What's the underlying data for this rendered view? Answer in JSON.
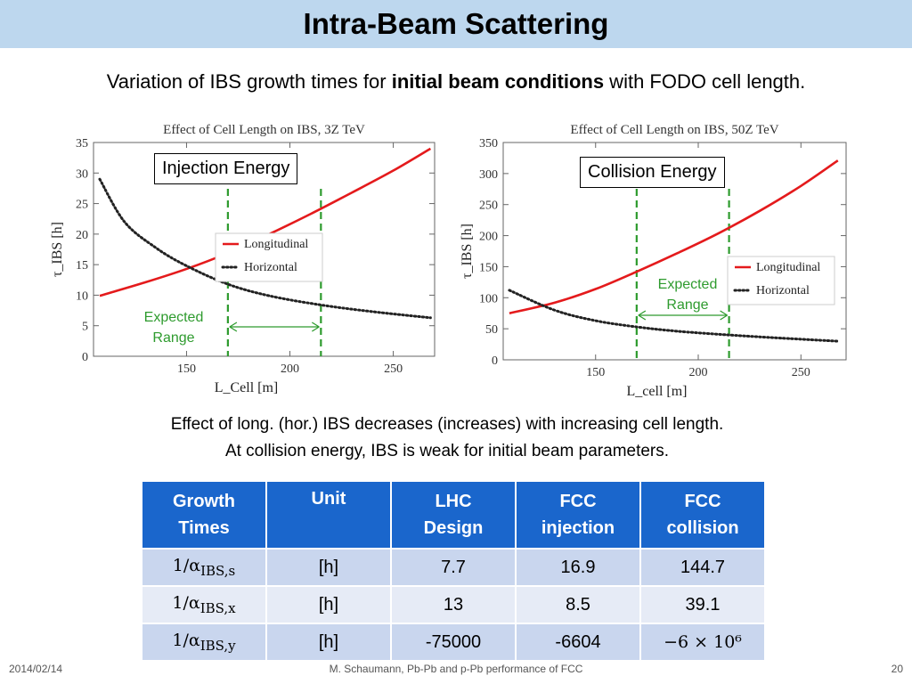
{
  "slide": {
    "title": "Intra-Beam Scattering",
    "subtitle_pre": "Variation of IBS growth times for ",
    "subtitle_bold": "initial beam conditions",
    "subtitle_post": " with FODO cell length.",
    "caption_line1": "Effect of long. (hor.) IBS decreases (increases) with increasing cell length.",
    "caption_line2": "At collision energy, IBS is weak for initial beam parameters."
  },
  "chart_data": [
    {
      "type": "line",
      "title": "Effect of Cell Length on IBS, 3Z TeV",
      "xlabel": "L_Cell [m]",
      "ylabel": "τ_IBS [h]",
      "xlim": [
        105,
        270
      ],
      "ylim": [
        0,
        35
      ],
      "xticks": [
        150,
        200,
        250
      ],
      "yticks": [
        0,
        5,
        10,
        15,
        20,
        25,
        30,
        35
      ],
      "callout": "Injection Energy",
      "expected_range_label": [
        "Expected",
        "Range"
      ],
      "expected_range": [
        170,
        215
      ],
      "legend_position": "right",
      "series": [
        {
          "name": "Longitudinal",
          "color": "#e41a1c",
          "style": "solid",
          "x": [
            108,
            130,
            150,
            170,
            190,
            210,
            230,
            250,
            268
          ],
          "y": [
            9.9,
            12.1,
            14.3,
            16.9,
            20.0,
            23.3,
            26.8,
            30.4,
            34.0
          ]
        },
        {
          "name": "Horizontal",
          "color": "#222222",
          "style": "dotted",
          "x": [
            108,
            120,
            135,
            150,
            170,
            190,
            215,
            240,
            268
          ],
          "y": [
            29.0,
            22.0,
            17.8,
            14.8,
            11.8,
            9.9,
            8.4,
            7.3,
            6.3
          ]
        }
      ]
    },
    {
      "type": "line",
      "title": "Effect of Cell Length on IBS, 50Z TeV",
      "xlabel": "L_cell [m]",
      "ylabel": "τ_IBS [h]",
      "xlim": [
        105,
        272
      ],
      "ylim": [
        0,
        350
      ],
      "xticks": [
        150,
        200,
        250
      ],
      "yticks": [
        0,
        50,
        100,
        150,
        200,
        250,
        300,
        350
      ],
      "callout": "Collision Energy",
      "expected_range_label": [
        "Expected",
        "Range"
      ],
      "expected_range": [
        170,
        215
      ],
      "legend_position": "right",
      "series": [
        {
          "name": "Longitudinal",
          "color": "#e41a1c",
          "style": "solid",
          "x": [
            108,
            130,
            150,
            170,
            190,
            210,
            230,
            250,
            268
          ],
          "y": [
            75,
            92,
            114,
            142,
            172,
            204,
            240,
            280,
            321
          ]
        },
        {
          "name": "Horizontal",
          "color": "#222222",
          "style": "dotted",
          "x": [
            108,
            130,
            150,
            170,
            190,
            215,
            240,
            268
          ],
          "y": [
            112,
            80,
            63,
            53,
            46,
            40,
            35,
            30
          ]
        }
      ]
    }
  ],
  "table": {
    "headers": [
      [
        "Growth",
        "Times"
      ],
      [
        "Unit",
        ""
      ],
      [
        "LHC",
        "Design"
      ],
      [
        "FCC",
        "injection"
      ],
      [
        "FCC",
        "collision"
      ]
    ],
    "rows": [
      {
        "quantity": "1/α",
        "sub": "IBS,s",
        "unit": "[h]",
        "lhc": "7.7",
        "fcc_inj": "16.9",
        "fcc_col": "144.7"
      },
      {
        "quantity": "1/α",
        "sub": "IBS,x",
        "unit": "[h]",
        "lhc": "13",
        "fcc_inj": "8.5",
        "fcc_col": "39.1"
      },
      {
        "quantity": "1/α",
        "sub": "IBS,y",
        "unit": "[h]",
        "lhc": "-75000",
        "fcc_inj": "-6604",
        "fcc_col": "−6 × 10⁶"
      }
    ]
  },
  "footer": {
    "date": "2014/02/14",
    "center": "M. Schaumann, Pb-Pb and p-Pb performance of FCC",
    "page": "20"
  }
}
